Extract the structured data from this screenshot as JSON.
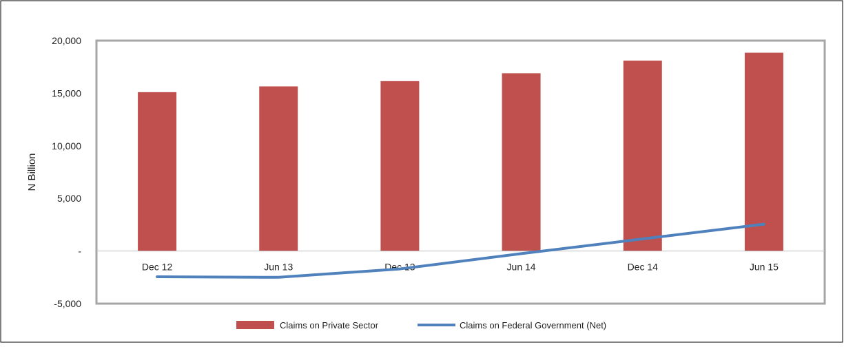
{
  "chart_data": {
    "type": "bar",
    "title": "",
    "xlabel": "",
    "ylabel": "N Billion",
    "ylim": [
      -5000,
      20000
    ],
    "yticks": [
      20000,
      15000,
      10000,
      5000,
      0,
      -5000
    ],
    "ytick_labels": [
      "20,000",
      "15,000",
      "10,000",
      "5,000",
      "-",
      "-5,000"
    ],
    "categories": [
      "Dec 12",
      "Jun 13",
      "Dec 13",
      "Jun 14",
      "Dec 14",
      "Jun 15"
    ],
    "series": [
      {
        "name": "Claims on Private Sector",
        "type": "bar",
        "color": "#c0504d",
        "values": [
          15100,
          15650,
          16150,
          16900,
          18100,
          18850
        ]
      },
      {
        "name": "Claims on Federal Government (Net)",
        "type": "line",
        "color": "#4f81bd",
        "values": [
          -2450,
          -2500,
          -1700,
          -250,
          1150,
          2550
        ]
      }
    ],
    "grid": false,
    "legend": "bottom"
  }
}
